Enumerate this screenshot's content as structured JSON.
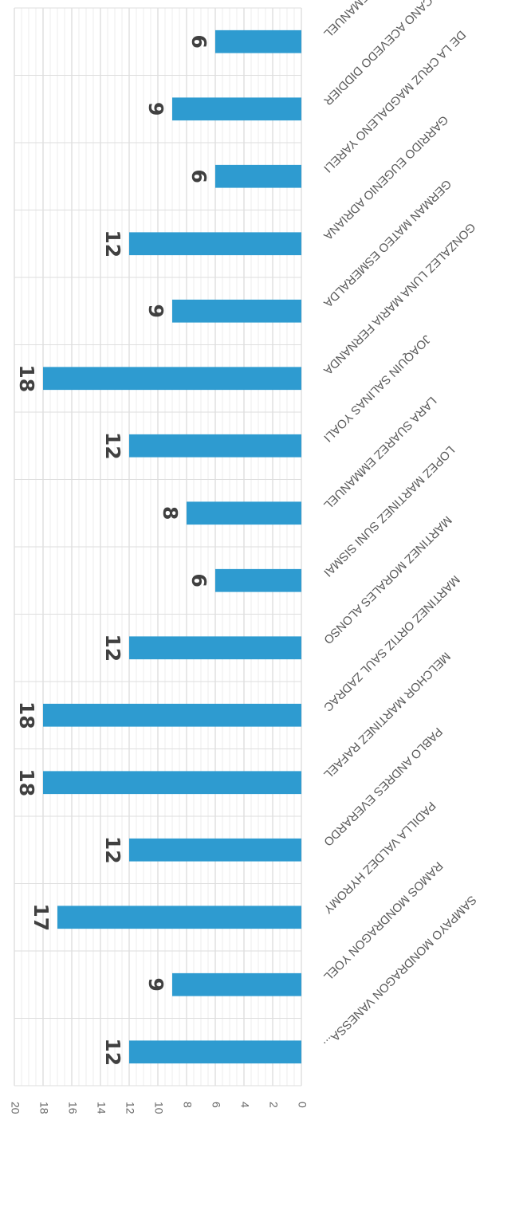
{
  "chart_data": {
    "type": "bar",
    "orientation": "rotated-90-cw",
    "categories": [
      "ANDRES BENITEZ EMANUEL",
      "CANO ACEVEDO DIDDIER",
      "DE LA CRUZ MAGDALENO YARELI",
      "GARRIDO EUGENIO ADRIANA",
      "GERMAN MATEO ESMERALDA",
      "GONZALEZ LUNA MARIA FERNANDA",
      "JOAQUIN SALINAS YOALI",
      "LARA SUAREZ EMMANUEL",
      "LOPEZ MARTINEZ SUNI SISMAI",
      "MARTINEZ MORALES ALONSO",
      "MARTINEZ ORTIZ SAUL ZADRAC",
      "MELCHOR MARTINEZ RAFAEL",
      "PABLO ANDRES EVERARDO",
      "PADILLA VALDEZ HYROMY",
      "RAMOS MONDRAGON YOEL",
      "SAMPAYO MONDRAGON VANESSA..."
    ],
    "values": [
      6,
      9,
      6,
      12,
      9,
      18,
      12,
      8,
      6,
      12,
      18,
      18,
      12,
      17,
      9,
      12
    ],
    "yticks": [
      "0",
      "2",
      "4",
      "6",
      "8",
      "10",
      "12",
      "14",
      "16",
      "18",
      "20"
    ],
    "ylim": [
      0,
      20
    ],
    "bar_color": "#2e9bd0",
    "grid": true,
    "legend": "none",
    "title": "",
    "xlabel": "",
    "ylabel": ""
  }
}
